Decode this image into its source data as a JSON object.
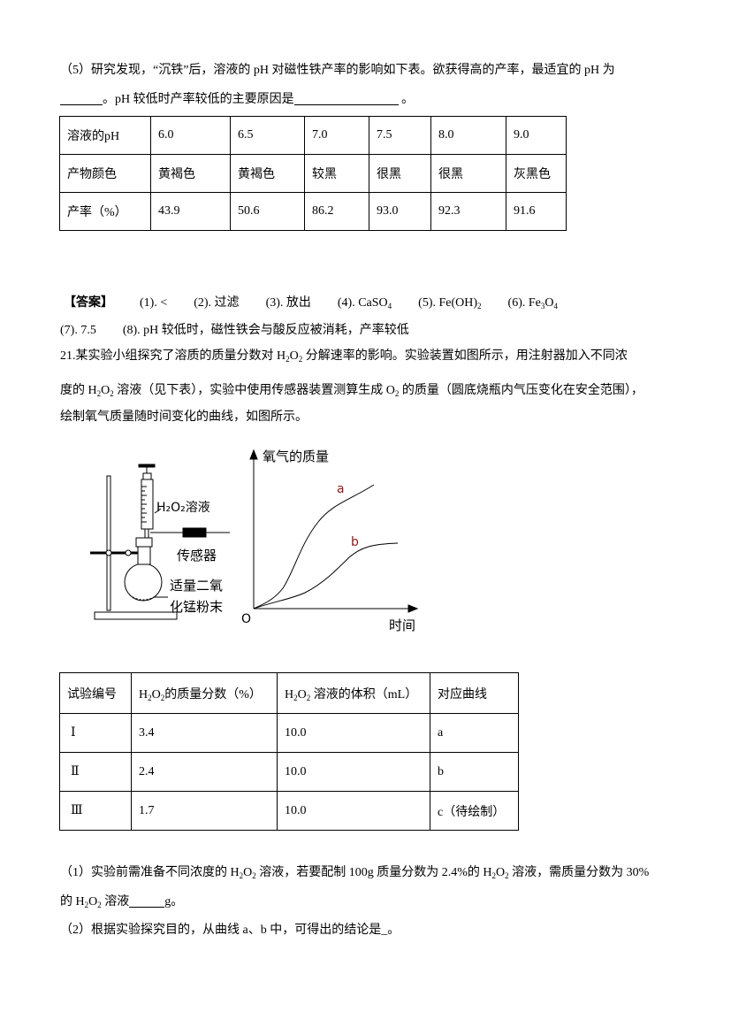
{
  "q5": {
    "line1": "（5）研究发现，“沉铁”后，溶液的 pH 对磁性铁产率的影响如下表。欲获得高的产率，最适宜的 pH 为",
    "line2_mid": "。pH 较低时产率较低的主要原因是",
    "line2_end": " 。"
  },
  "table1": {
    "rows": [
      [
        "溶液的pH",
        "6.0",
        "6.5",
        "7.0",
        "7.5",
        "8.0",
        "9.0"
      ],
      [
        "产物颜色",
        "黄褐色",
        "黄褐色",
        "较黑",
        "很黑",
        "很黑",
        "灰黑色"
      ],
      [
        "产率（%）",
        "43.9",
        "50.6",
        "86.2",
        "93.0",
        "92.3",
        "91.6"
      ]
    ]
  },
  "answer": {
    "label": "【答案】",
    "a1": "(1). <",
    "a2": "(2). 过滤",
    "a3": "(3). 放出",
    "a4": "(4). CaSO",
    "a4_sub": "4",
    "a5": "(5). Fe(OH)",
    "a5_sub": "2",
    "a6": "(6). Fe",
    "a6_sub1": "3",
    "a6_mid": "O",
    "a6_sub2": "4",
    "a7": "(7). 7.5",
    "a8": "(8). pH 较低时，磁性铁会与酸反应被消耗，产率较低"
  },
  "q21": {
    "l1a": "21.某实验小组探究了溶质的质量分数对 H",
    "l1b": "O",
    "l1c": " 分解速率的影响。实验装置如图所示，用注射器加入不同浓",
    "l2a": "度的 H",
    "l2b": "O",
    "l2c": " 溶液（见下表），实验中使用传感器装置测算生成 O",
    "l2d": " 的质量（圆底烧瓶内气压变化在安全范围），",
    "l3": "绘制氧气质量随时间变化的曲线，如图所示。",
    "sub2": "2"
  },
  "figure": {
    "syringe_label": "H₂O₂溶液",
    "sensor_label": "传感器",
    "powder_label_1": "适量二氧",
    "powder_label_2": "化锰粉末",
    "y_axis_label": "氧气的质量",
    "x_axis_label": "时间",
    "origin_label": "O",
    "curve_a_label": "a",
    "curve_b_label": "b",
    "curve_label_color": "#8b1a1a"
  },
  "table2": {
    "headers": {
      "c1": "试验编号",
      "c2a": "H",
      "c2b": "O",
      "c2c": "的质量分数（%）",
      "c3a": "H",
      "c3b": "O",
      "c3c": " 溶液的体积（mL）",
      "c4": "对应曲线",
      "sub": "2"
    },
    "rows": [
      [
        "Ⅰ",
        "3.4",
        "10.0",
        "a"
      ],
      [
        "Ⅱ",
        "2.4",
        "10.0",
        "b"
      ],
      [
        "Ⅲ",
        "1.7",
        "10.0",
        "c（待绘制）"
      ]
    ]
  },
  "sub_q": {
    "q1a": "（1）实验前需准备不同浓度的 H",
    "q1b": "O",
    "q1c": " 溶液，若要配制 100g 质量分数为 2.4%的 H",
    "q1d": "O",
    "q1e": " 溶液，需质量分数为 30%",
    "q1f": "的 H",
    "q1g": "O",
    "q1h": " 溶液",
    "q1i": "g。",
    "q2": "（2）根据实验探究目的，从曲线 a、b 中，可得出的结论是_。",
    "sub2": "2"
  }
}
